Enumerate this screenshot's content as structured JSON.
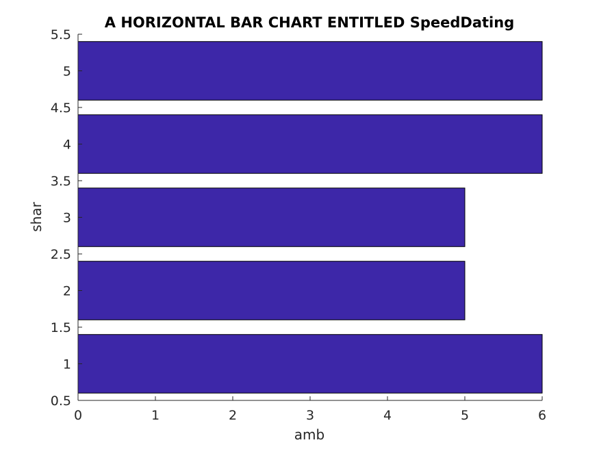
{
  "chart_data": {
    "type": "bar",
    "orientation": "horizontal",
    "title": "A HORIZONTAL BAR CHART ENTITLED SpeedDating",
    "xlabel": "amb",
    "ylabel": "shar",
    "categories": [
      1,
      2,
      3,
      4,
      5
    ],
    "values": [
      6,
      5,
      5,
      6,
      6
    ],
    "xlim": [
      0,
      6
    ],
    "ylim": [
      0.5,
      5.5
    ],
    "xticks": [
      "0",
      "1",
      "2",
      "3",
      "4",
      "5",
      "6"
    ],
    "yticks": [
      "0.5",
      "1",
      "1.5",
      "2",
      "2.5",
      "3",
      "3.5",
      "4",
      "4.5",
      "5",
      "5.5"
    ],
    "bar_color": "#3d27a8",
    "grid": false,
    "legend": "none"
  }
}
